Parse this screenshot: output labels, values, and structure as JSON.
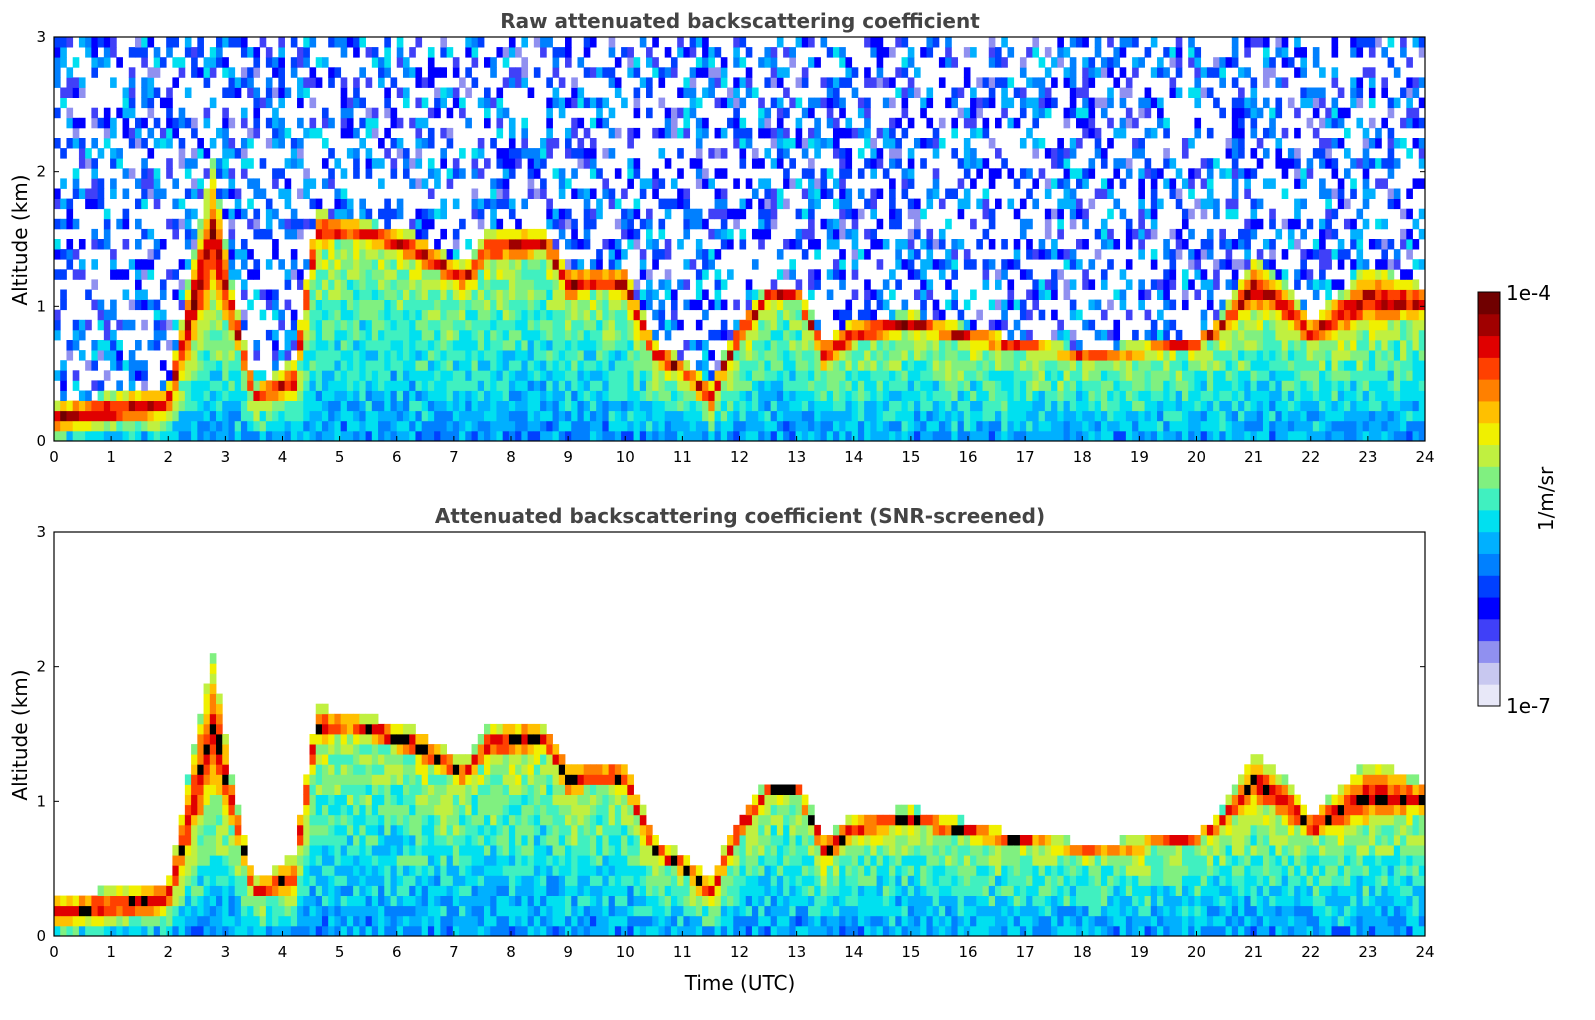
{
  "chart_data": [
    {
      "type": "heatmap",
      "title": "Raw attenuated backscattering coefficient",
      "xlabel": "",
      "ylabel": "Altitude (km)",
      "xlim": [
        0,
        24
      ],
      "ylim": [
        0,
        3
      ],
      "xticks": [
        "0",
        "1",
        "2",
        "3",
        "4",
        "5",
        "6",
        "7",
        "8",
        "9",
        "10",
        "11",
        "12",
        "13",
        "14",
        "15",
        "16",
        "17",
        "18",
        "19",
        "20",
        "21",
        "22",
        "23",
        "24"
      ],
      "yticks": [
        "0",
        "1",
        "2",
        "3"
      ],
      "screened": false,
      "layer_profile": {
        "x": [
          0,
          1,
          2,
          2.4,
          2.8,
          3.1,
          3.5,
          4.2,
          4.6,
          5.2,
          5.8,
          6.3,
          6.8,
          7.2,
          7.6,
          8.2,
          8.6,
          9.0,
          9.5,
          10.0,
          10.5,
          11.0,
          11.5,
          12.0,
          12.5,
          13.0,
          13.5,
          14.0,
          15.0,
          16.0,
          17.0,
          18.0,
          19.0,
          20.0,
          20.4,
          21.0,
          21.5,
          22.0,
          23.0,
          24.0
        ],
        "base_km": [
          0.05,
          0.1,
          0.15,
          0.6,
          1.0,
          0.8,
          0.25,
          0.3,
          1.4,
          1.5,
          1.4,
          1.3,
          1.2,
          1.1,
          1.3,
          1.3,
          1.4,
          1.0,
          1.1,
          1.05,
          0.55,
          0.45,
          0.2,
          0.7,
          1.0,
          1.05,
          0.5,
          0.7,
          0.8,
          0.7,
          0.65,
          0.6,
          0.62,
          0.68,
          0.75,
          0.95,
          0.85,
          0.7,
          0.8,
          0.9
        ],
        "top_km": [
          0.3,
          0.35,
          0.4,
          1.3,
          2.1,
          1.2,
          0.4,
          0.6,
          1.7,
          1.65,
          1.6,
          1.55,
          1.4,
          1.3,
          1.55,
          1.6,
          1.55,
          1.3,
          1.3,
          1.3,
          0.75,
          0.6,
          0.45,
          0.9,
          1.15,
          1.15,
          0.75,
          0.9,
          0.95,
          0.85,
          0.75,
          0.7,
          0.72,
          0.78,
          0.9,
          1.35,
          1.2,
          0.9,
          1.3,
          1.15
        ]
      }
    },
    {
      "type": "heatmap",
      "title": "Attenuated backscattering coefficient (SNR-screened)",
      "xlabel": "Time (UTC)",
      "ylabel": "Altitude (km)",
      "xlim": [
        0,
        24
      ],
      "ylim": [
        0,
        3
      ],
      "xticks": [
        "0",
        "1",
        "2",
        "3",
        "4",
        "5",
        "6",
        "7",
        "8",
        "9",
        "10",
        "11",
        "12",
        "13",
        "14",
        "15",
        "16",
        "17",
        "18",
        "19",
        "20",
        "21",
        "22",
        "23",
        "24"
      ],
      "yticks": [
        "0",
        "1",
        "2",
        "3"
      ],
      "screened": true,
      "layer_profile": {
        "x": [
          0,
          1,
          2,
          2.4,
          2.8,
          3.1,
          3.5,
          4.2,
          4.6,
          5.2,
          5.8,
          6.3,
          6.8,
          7.2,
          7.6,
          8.2,
          8.6,
          9.0,
          9.5,
          10.0,
          10.5,
          11.0,
          11.5,
          12.0,
          12.5,
          13.0,
          13.5,
          14.0,
          15.0,
          16.0,
          17.0,
          18.0,
          19.0,
          20.0,
          20.4,
          21.0,
          21.5,
          22.0,
          23.0,
          24.0
        ],
        "base_km": [
          0.05,
          0.1,
          0.15,
          0.6,
          1.0,
          0.8,
          0.25,
          0.3,
          1.4,
          1.5,
          1.4,
          1.3,
          1.2,
          1.1,
          1.3,
          1.3,
          1.4,
          1.0,
          1.1,
          1.05,
          0.55,
          0.45,
          0.2,
          0.7,
          1.0,
          1.05,
          0.5,
          0.7,
          0.8,
          0.7,
          0.65,
          0.6,
          0.62,
          0.68,
          0.75,
          0.95,
          0.85,
          0.7,
          0.8,
          0.9
        ],
        "top_km": [
          0.3,
          0.35,
          0.4,
          1.3,
          2.1,
          1.2,
          0.4,
          0.6,
          1.7,
          1.65,
          1.6,
          1.55,
          1.4,
          1.3,
          1.55,
          1.6,
          1.55,
          1.3,
          1.3,
          1.3,
          0.75,
          0.6,
          0.45,
          0.9,
          1.15,
          1.15,
          0.75,
          0.9,
          0.95,
          0.85,
          0.75,
          0.7,
          0.72,
          0.78,
          0.9,
          1.35,
          1.2,
          0.9,
          1.3,
          1.15
        ]
      }
    }
  ],
  "colorbar": {
    "label": "1/m/sr",
    "max_label": "1e-4",
    "min_label": "1e-7",
    "colors": [
      "#e8e8f8",
      "#c8c8f0",
      "#9090f0",
      "#4040f8",
      "#0000ff",
      "#0040ff",
      "#0080ff",
      "#00b0ff",
      "#00e0f0",
      "#40f0c0",
      "#80f080",
      "#c0f040",
      "#f0f000",
      "#ffc000",
      "#ff8000",
      "#ff4000",
      "#e00000",
      "#a00000",
      "#700000"
    ]
  }
}
